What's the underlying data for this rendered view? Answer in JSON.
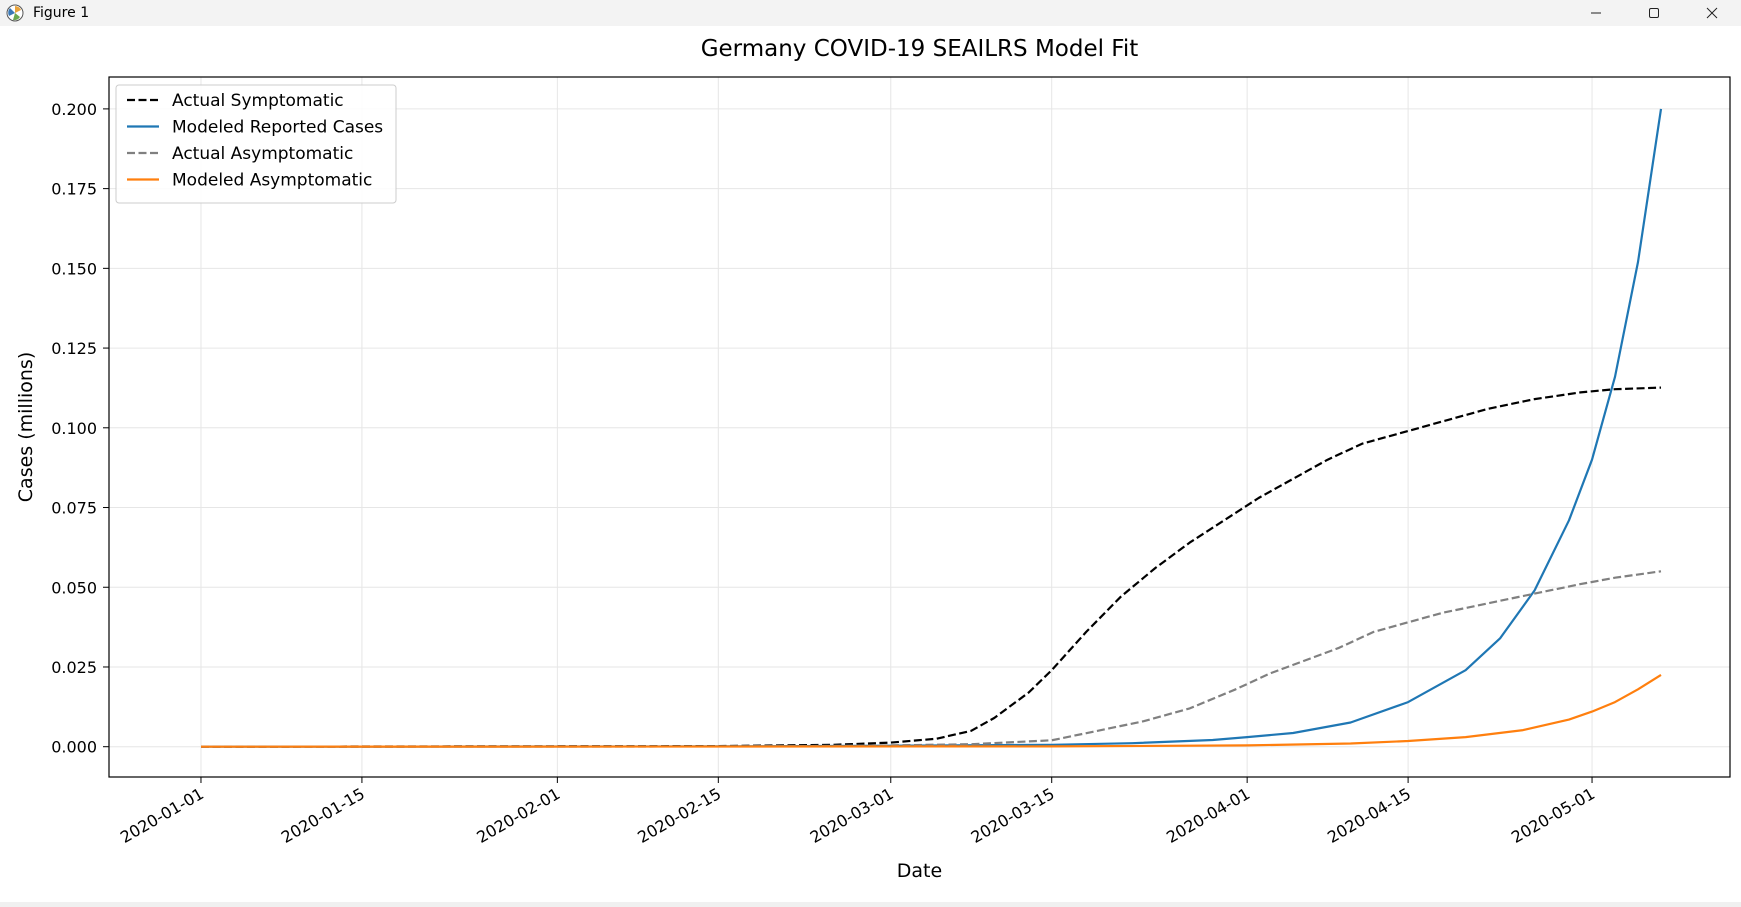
{
  "window": {
    "title": "Figure 1",
    "controls": [
      "minimize",
      "maximize",
      "close"
    ]
  },
  "colors": {
    "actual_symptomatic": "#000000",
    "modeled_reported": "#1f77b4",
    "actual_asymptomatic": "#808080",
    "modeled_asymptomatic": "#ff7f0e",
    "grid": "#e6e6e6"
  },
  "chart_data": {
    "type": "line",
    "title": "Germany COVID-19 SEAILRS Model Fit",
    "xlabel": "Date",
    "ylabel": "Cases (millions)",
    "xlim": [
      "2019-12-24",
      "2020-05-13"
    ],
    "ylim": [
      -0.0095,
      0.21
    ],
    "x_ticks": [
      "2020-01-01",
      "2020-01-15",
      "2020-02-01",
      "2020-02-15",
      "2020-03-01",
      "2020-03-15",
      "2020-04-01",
      "2020-04-15",
      "2020-05-01"
    ],
    "y_ticks": [
      "0.000",
      "0.025",
      "0.050",
      "0.075",
      "0.100",
      "0.125",
      "0.150",
      "0.175",
      "0.200"
    ],
    "grid": true,
    "legend_position": "top-left",
    "series": [
      {
        "name": "Actual Symptomatic",
        "style": "dashed",
        "points": [
          [
            "2020-01-01",
            0
          ],
          [
            "2020-02-15",
            0.0002
          ],
          [
            "2020-02-25",
            0.0006
          ],
          [
            "2020-03-01",
            0.0013
          ],
          [
            "2020-03-05",
            0.0025
          ],
          [
            "2020-03-08",
            0.005
          ],
          [
            "2020-03-10",
            0.009
          ],
          [
            "2020-03-13",
            0.017
          ],
          [
            "2020-03-15",
            0.024
          ],
          [
            "2020-03-18",
            0.036
          ],
          [
            "2020-03-21",
            0.047
          ],
          [
            "2020-03-24",
            0.056
          ],
          [
            "2020-03-27",
            0.064
          ],
          [
            "2020-03-30",
            0.071
          ],
          [
            "2020-04-02",
            0.078
          ],
          [
            "2020-04-05",
            0.084
          ],
          [
            "2020-04-08",
            0.09
          ],
          [
            "2020-04-11",
            0.095
          ],
          [
            "2020-04-15",
            0.099
          ],
          [
            "2020-04-18",
            0.102
          ],
          [
            "2020-04-22",
            0.106
          ],
          [
            "2020-04-26",
            0.109
          ],
          [
            "2020-04-30",
            0.1111
          ],
          [
            "2020-05-03",
            0.1121
          ],
          [
            "2020-05-07",
            0.1126
          ]
        ]
      },
      {
        "name": "Modeled Reported Cases",
        "style": "solid",
        "points": [
          [
            "2020-01-01",
            0
          ],
          [
            "2020-02-15",
            0.0001
          ],
          [
            "2020-03-01",
            0.0003
          ],
          [
            "2020-03-15",
            0.0006
          ],
          [
            "2020-03-22",
            0.0011
          ],
          [
            "2020-03-29",
            0.0021
          ],
          [
            "2020-04-01",
            0.003
          ],
          [
            "2020-04-05",
            0.0043
          ],
          [
            "2020-04-10",
            0.0076
          ],
          [
            "2020-04-15",
            0.014
          ],
          [
            "2020-04-20",
            0.024
          ],
          [
            "2020-04-23",
            0.034
          ],
          [
            "2020-04-26",
            0.049
          ],
          [
            "2020-04-29",
            0.071
          ],
          [
            "2020-05-01",
            0.09
          ],
          [
            "2020-05-03",
            0.116
          ],
          [
            "2020-05-05",
            0.152
          ],
          [
            "2020-05-07",
            0.2
          ]
        ]
      },
      {
        "name": "Actual Asymptomatic",
        "style": "dashed",
        "points": [
          [
            "2020-01-01",
            0
          ],
          [
            "2020-02-20",
            0.0001
          ],
          [
            "2020-03-01",
            0.0004
          ],
          [
            "2020-03-08",
            0.0008
          ],
          [
            "2020-03-15",
            0.002
          ],
          [
            "2020-03-19",
            0.005
          ],
          [
            "2020-03-23",
            0.008
          ],
          [
            "2020-03-27",
            0.012
          ],
          [
            "2020-03-31",
            0.018
          ],
          [
            "2020-04-03",
            0.023
          ],
          [
            "2020-04-06",
            0.027
          ],
          [
            "2020-04-09",
            0.031
          ],
          [
            "2020-04-12",
            0.036
          ],
          [
            "2020-04-15",
            0.039
          ],
          [
            "2020-04-18",
            0.042
          ],
          [
            "2020-04-22",
            0.045
          ],
          [
            "2020-04-26",
            0.048
          ],
          [
            "2020-04-30",
            0.051
          ],
          [
            "2020-05-03",
            0.053
          ],
          [
            "2020-05-07",
            0.055
          ]
        ]
      },
      {
        "name": "Modeled Asymptomatic",
        "style": "solid",
        "points": [
          [
            "2020-01-01",
            0
          ],
          [
            "2020-03-15",
            0.0001
          ],
          [
            "2020-04-01",
            0.0004
          ],
          [
            "2020-04-10",
            0.001
          ],
          [
            "2020-04-15",
            0.0018
          ],
          [
            "2020-04-20",
            0.003
          ],
          [
            "2020-04-25",
            0.0052
          ],
          [
            "2020-04-29",
            0.0085
          ],
          [
            "2020-05-01",
            0.011
          ],
          [
            "2020-05-03",
            0.014
          ],
          [
            "2020-05-05",
            0.018
          ],
          [
            "2020-05-07",
            0.0225
          ]
        ]
      }
    ]
  }
}
